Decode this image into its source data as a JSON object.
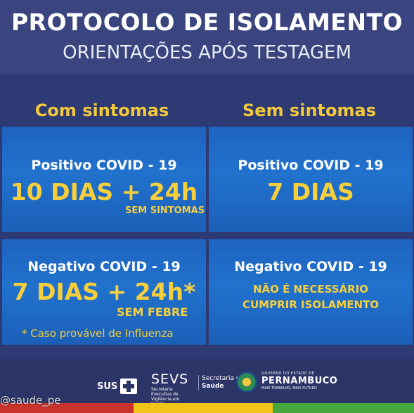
{
  "header": {
    "title": "PROTOCOLO DE ISOLAMENTO",
    "subtitle": "ORIENTAÇÕES APÓS TESTAGEM"
  },
  "columns": {
    "left": "Com sintomas",
    "right": "Sem sintomas"
  },
  "cards": {
    "sym_pos": {
      "label": "Positivo COVID - 19",
      "value": "10 DIAS + 24h",
      "detail": "SEM SINTOMAS"
    },
    "nosym_pos": {
      "label": "Positivo COVID - 19",
      "value": "7 DIAS"
    },
    "sym_neg": {
      "label": "Negativo COVID - 19",
      "value": "7 DIAS + 24h*",
      "detail": "SEM  FEBRE",
      "note": "* Caso provável de Influenza"
    },
    "nosym_neg": {
      "label": "Negativo COVID - 19",
      "line1": "NÃO É NECESSÁRIO",
      "line2": "CUMPRIR ISOLAMENTO"
    }
  },
  "footer": {
    "sus": "SUS",
    "sevs": "SEVS",
    "sevs_sub": "Secretaria Executiva de Vigilância em Saúde",
    "secretaria": "Secretaria de",
    "saude": "Saúde",
    "gov": "GOVERNO DO ESTADO DE",
    "state": "PERNAMBUCO",
    "tagline": "MAIS TRABALHO, MAIS FUTURO"
  },
  "watermark": "@saude_pe",
  "colors": {
    "background": "#2e3a73",
    "card": "#2072cd",
    "accent": "#f7cf3c",
    "stripe_red": "#c8342b",
    "stripe_yellow": "#f0c419",
    "stripe_green": "#46a73e"
  }
}
